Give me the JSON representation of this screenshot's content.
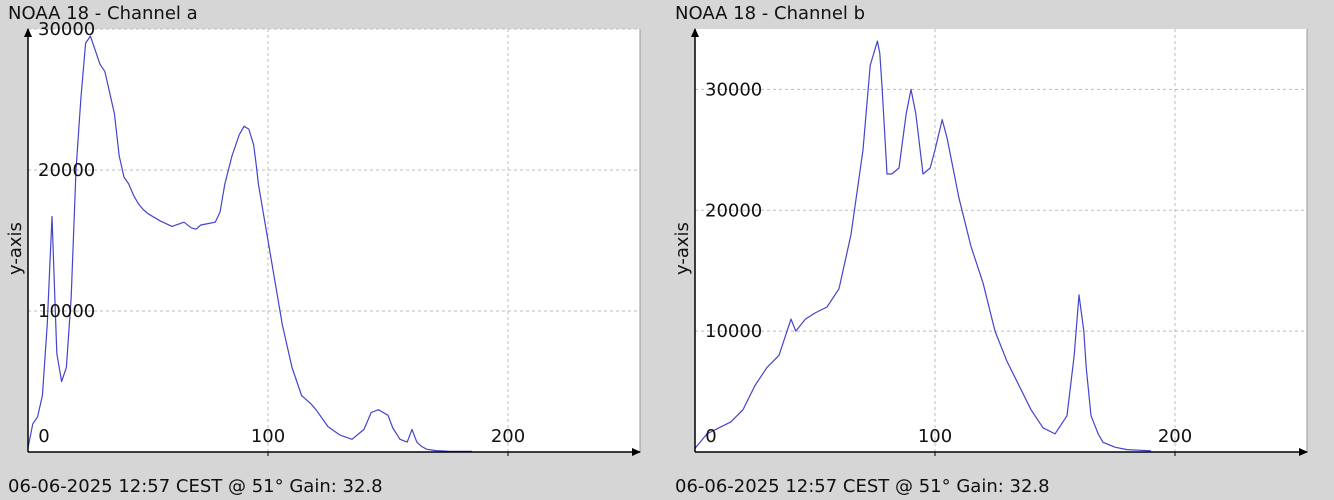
{
  "footer_text": "06-06-2025 12:57 CEST @ 51° Gain: 32.8",
  "chart_data": [
    {
      "type": "line",
      "title": "NOAA 18 - Channel a",
      "ylabel": "y-axis",
      "xlabel": "",
      "xlim": [
        0,
        255
      ],
      "ylim": [
        0,
        30000
      ],
      "x_ticks": [
        0,
        100,
        200
      ],
      "y_ticks": [
        10000,
        20000,
        30000
      ],
      "grid": true,
      "line_color": "#4444cc",
      "series": [
        {
          "x": [
            0,
            2,
            4,
            6,
            8,
            10,
            12,
            14,
            16,
            18,
            20,
            22,
            24,
            26,
            28,
            30,
            32,
            34,
            36,
            38,
            40,
            42,
            44,
            46,
            48,
            50,
            55,
            60,
            65,
            68,
            70,
            72,
            75,
            78,
            80,
            82,
            85,
            88,
            90,
            92,
            94,
            95,
            96,
            98,
            100,
            102,
            104,
            106,
            108,
            110,
            112,
            114,
            116,
            118,
            120,
            125,
            130,
            135,
            140,
            143,
            146,
            148,
            150,
            152,
            155,
            158,
            160,
            162,
            164,
            166,
            168,
            170,
            175,
            180,
            185
          ],
          "y": [
            300,
            2000,
            2500,
            4000,
            9000,
            16700,
            7000,
            5000,
            6000,
            11000,
            20000,
            25000,
            29000,
            29500,
            28500,
            27500,
            27000,
            25500,
            24000,
            21000,
            19500,
            19000,
            18200,
            17600,
            17200,
            16900,
            16400,
            16000,
            16300,
            15900,
            15800,
            16100,
            16200,
            16300,
            17000,
            19000,
            21000,
            22500,
            23100,
            22900,
            21800,
            20500,
            19000,
            17000,
            15000,
            13000,
            11000,
            9000,
            7500,
            6000,
            5000,
            4000,
            3700,
            3400,
            3000,
            1800,
            1200,
            900,
            1600,
            2800,
            3000,
            2800,
            2600,
            1700,
            900,
            700,
            1600,
            700,
            400,
            200,
            150,
            100,
            60,
            50,
            40
          ]
        }
      ]
    },
    {
      "type": "line",
      "title": "NOAA 18 - Channel b",
      "ylabel": "y-axis",
      "xlabel": "",
      "xlim": [
        0,
        255
      ],
      "ylim": [
        0,
        35000
      ],
      "x_ticks": [
        0,
        100,
        200
      ],
      "y_ticks": [
        10000,
        20000,
        30000
      ],
      "grid": true,
      "line_color": "#4444cc",
      "series": [
        {
          "x": [
            0,
            5,
            10,
            15,
            20,
            25,
            30,
            35,
            40,
            42,
            44,
            46,
            50,
            55,
            60,
            65,
            70,
            73,
            76,
            77,
            78,
            80,
            82,
            85,
            88,
            90,
            92,
            95,
            98,
            100,
            103,
            105,
            108,
            110,
            115,
            120,
            125,
            130,
            135,
            140,
            145,
            150,
            155,
            158,
            160,
            162,
            163,
            165,
            168,
            170,
            175,
            180,
            190
          ],
          "y": [
            300,
            1500,
            2000,
            2500,
            3500,
            5500,
            7000,
            8000,
            11000,
            10000,
            10500,
            11000,
            11500,
            12000,
            13500,
            18000,
            25000,
            32000,
            34000,
            33000,
            30000,
            23000,
            23000,
            23500,
            28000,
            30000,
            28000,
            23000,
            23500,
            25000,
            27500,
            26000,
            23000,
            21000,
            17000,
            14000,
            10000,
            7500,
            5500,
            3500,
            2000,
            1500,
            3000,
            8000,
            13000,
            10000,
            7000,
            3000,
            1500,
            800,
            400,
            200,
            100
          ]
        }
      ]
    }
  ]
}
